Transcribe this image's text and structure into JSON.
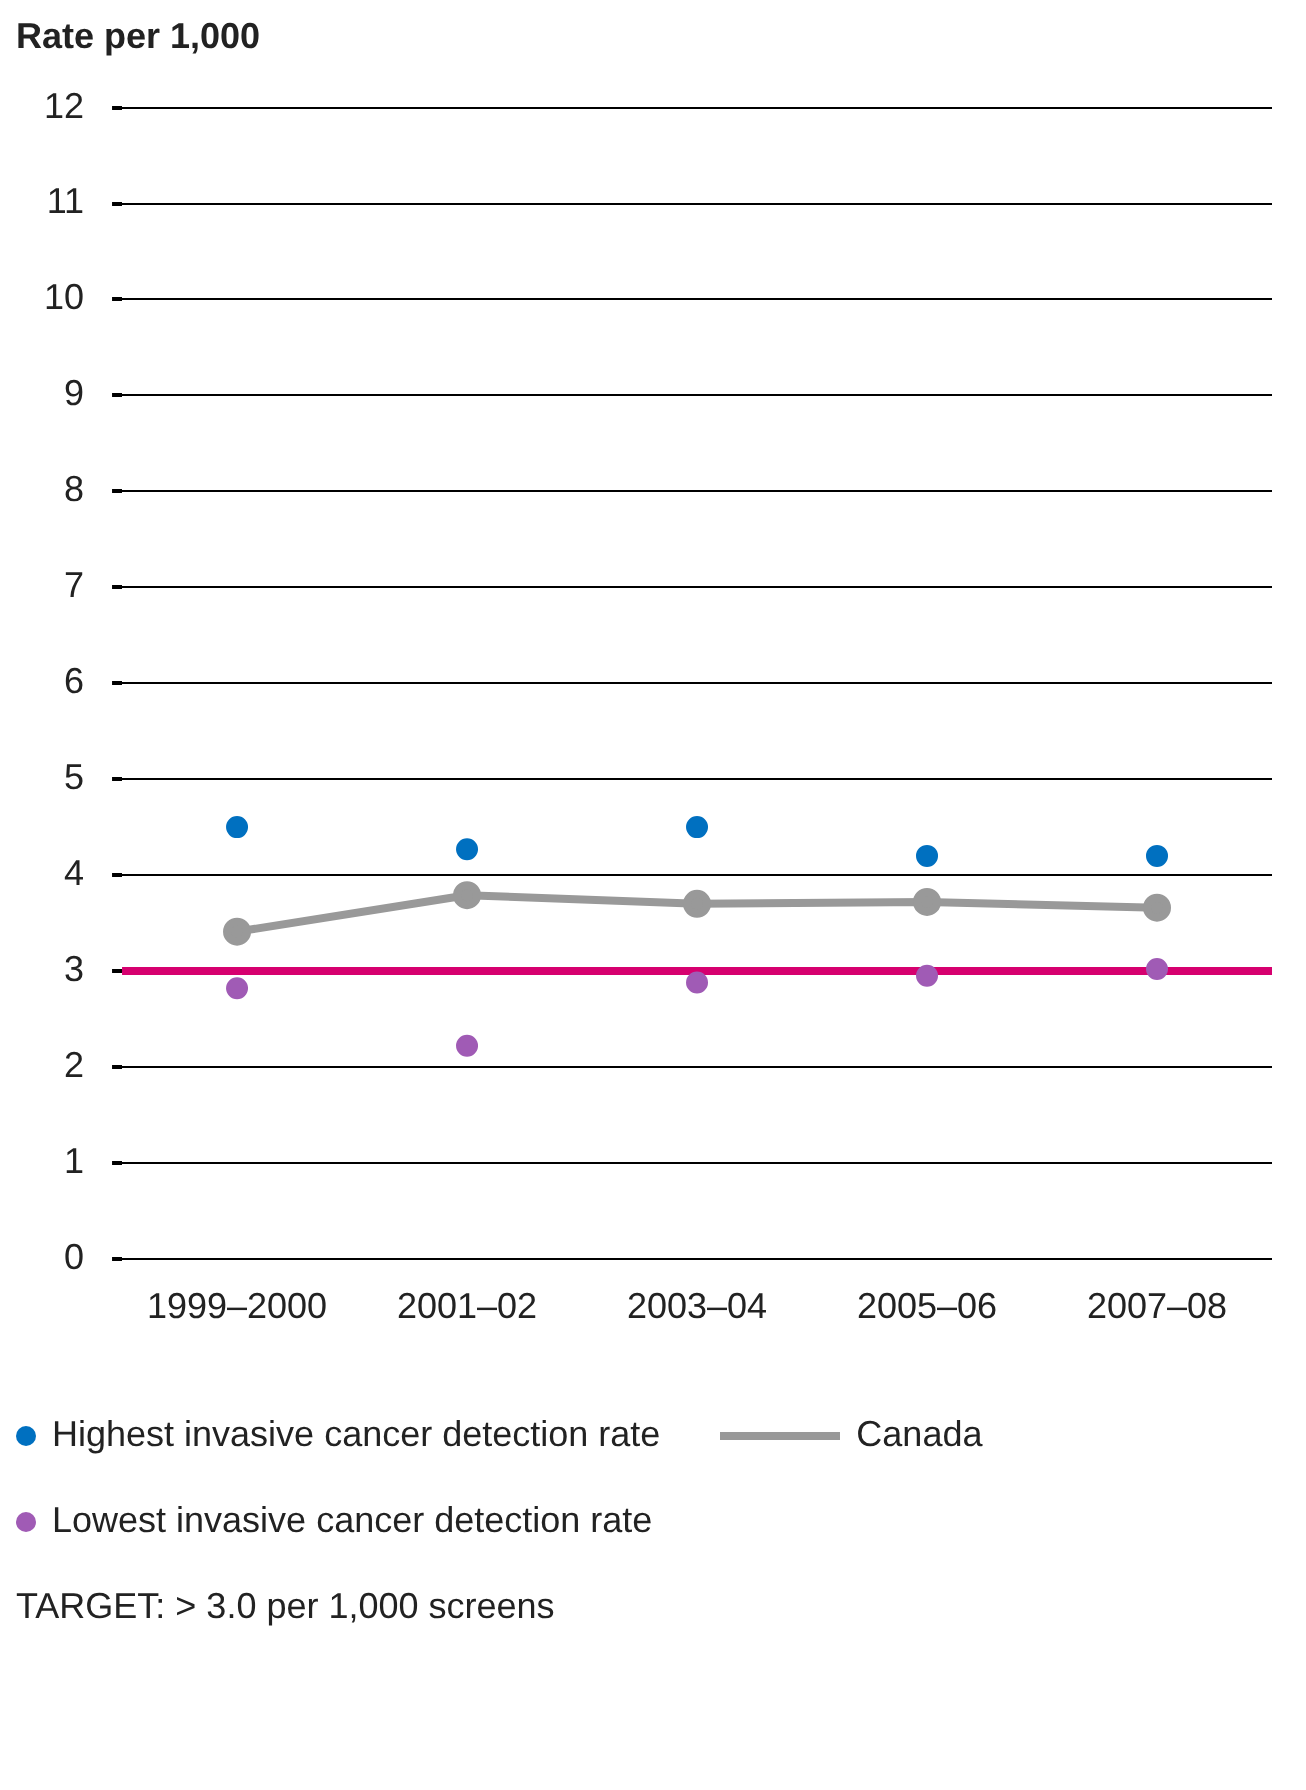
{
  "chart_data": {
    "type": "line",
    "ylabel": "Rate per 1,000",
    "categories": [
      "1999–2000",
      "2001–02",
      "2003–04",
      "2005–06",
      "2007–08"
    ],
    "series": [
      {
        "name": "Highest invasive cancer detection rate",
        "type": "scatter",
        "color": "#0070c0",
        "values": [
          4.5,
          4.27,
          4.5,
          4.2,
          4.2
        ]
      },
      {
        "name": "Lowest invasive cancer detection rate",
        "type": "scatter",
        "color": "#a05bb5",
        "values": [
          2.82,
          2.22,
          2.88,
          2.95,
          3.02
        ]
      },
      {
        "name": "Canada",
        "type": "line",
        "color": "#999999",
        "values": [
          3.41,
          3.79,
          3.7,
          3.72,
          3.66
        ]
      }
    ],
    "ylim": [
      0,
      12
    ],
    "yticks": [
      0,
      1,
      2,
      3,
      4,
      5,
      6,
      7,
      8,
      9,
      10,
      11,
      12
    ],
    "grid": "y",
    "legend": "bottom",
    "marker": "circle",
    "annotations": [
      "TARGET: > 3.0 per 1,000 screens"
    ],
    "ref_lines": [
      {
        "axis": "y",
        "value": 3,
        "color": "#d6006f"
      }
    ]
  }
}
